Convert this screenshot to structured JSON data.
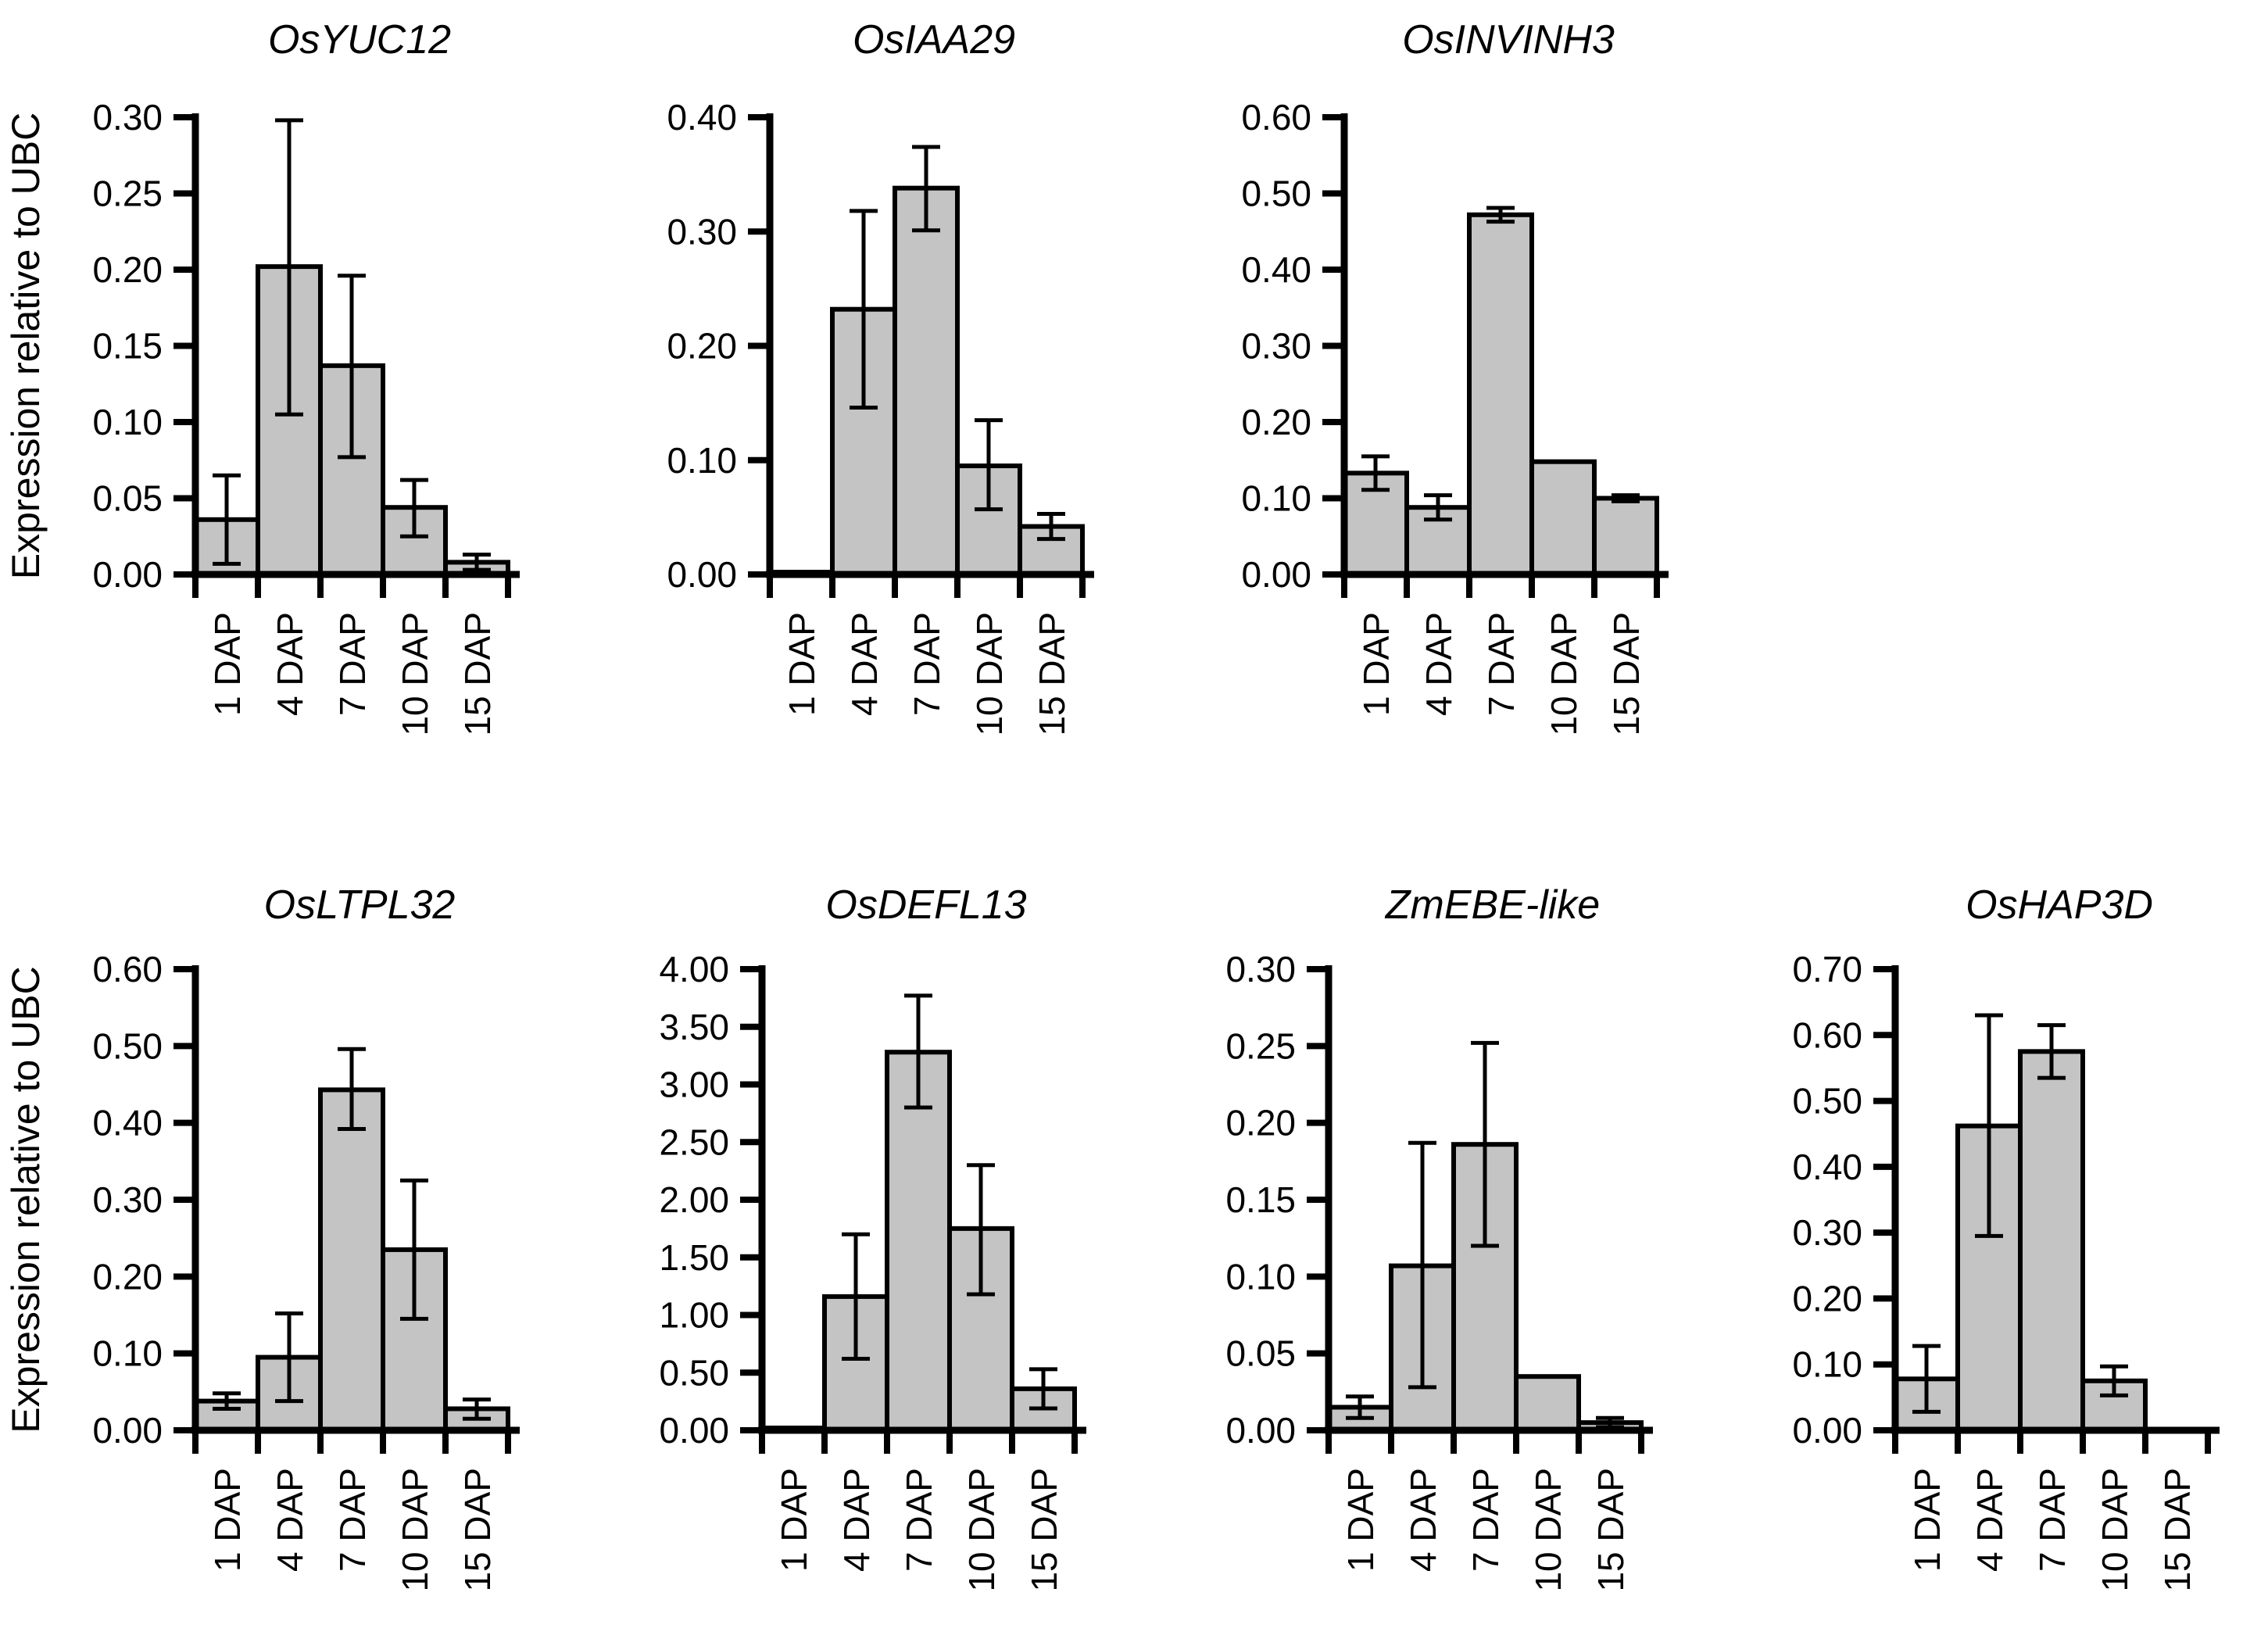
{
  "figure": {
    "y_axis_label": "Expression relative to UBC",
    "categories": [
      "1 DAP",
      "4 DAP",
      "7 DAP",
      "10 DAP",
      "15 DAP"
    ],
    "styles": {
      "bar_fill": "#c4c4c4",
      "bar_stroke": "#000000",
      "axis_color": "#000000",
      "text_color": "#000000",
      "background": "#ffffff"
    }
  },
  "chart_data": [
    {
      "type": "bar",
      "row": 1,
      "title": "OsYUC12",
      "ylabel": "Expression relative to UBC",
      "categories": [
        "1 DAP",
        "4 DAP",
        "7 DAP",
        "10 DAP",
        "15 DAP"
      ],
      "values": [
        0.036,
        0.202,
        0.137,
        0.044,
        0.008
      ],
      "err_plus": [
        0.029,
        0.096,
        0.059,
        0.018,
        0.005
      ],
      "err_minus": [
        0.029,
        0.097,
        0.06,
        0.019,
        0.005
      ],
      "ylim": [
        0,
        0.3
      ],
      "ystep": 0.05,
      "yticks": [
        "0.00",
        "0.05",
        "0.10",
        "0.15",
        "0.20",
        "0.25",
        "0.30"
      ],
      "grid": false,
      "legend": null
    },
    {
      "type": "bar",
      "row": 1,
      "title": "OsIAA29",
      "ylabel": "Expression relative to UBC",
      "categories": [
        "1 DAP",
        "4 DAP",
        "7 DAP",
        "10 DAP",
        "15 DAP"
      ],
      "values": [
        0.002,
        0.232,
        0.338,
        0.095,
        0.042
      ],
      "err_plus": [
        0,
        0.086,
        0.036,
        0.04,
        0.011
      ],
      "err_minus": [
        0,
        0.086,
        0.037,
        0.038,
        0.011
      ],
      "ylim": [
        0,
        0.4
      ],
      "ystep": 0.1,
      "yticks": [
        "0.00",
        "0.10",
        "0.20",
        "0.30",
        "0.40"
      ],
      "grid": false,
      "legend": null
    },
    {
      "type": "bar",
      "row": 1,
      "title": "OsINVINH3",
      "ylabel": "Expression relative to UBC",
      "categories": [
        "1 DAP",
        "4 DAP",
        "7 DAP",
        "10 DAP",
        "15 DAP"
      ],
      "values": [
        0.133,
        0.088,
        0.472,
        0.148,
        0.1
      ],
      "err_plus": [
        0.022,
        0.016,
        0.009,
        0,
        0.004
      ],
      "err_minus": [
        0.022,
        0.016,
        0.009,
        0,
        0.004
      ],
      "ylim": [
        0,
        0.6
      ],
      "ystep": 0.1,
      "yticks": [
        "0.00",
        "0.10",
        "0.20",
        "0.30",
        "0.40",
        "0.50",
        "0.60"
      ],
      "grid": false,
      "legend": null
    },
    {
      "type": "bar",
      "row": 2,
      "title": "OsLTPL32",
      "ylabel": "Expression relative to UBC",
      "categories": [
        "1 DAP",
        "4 DAP",
        "7 DAP",
        "10 DAP",
        "15 DAP"
      ],
      "values": [
        0.038,
        0.095,
        0.443,
        0.235,
        0.028
      ],
      "err_plus": [
        0.01,
        0.057,
        0.053,
        0.09,
        0.012
      ],
      "err_minus": [
        0.01,
        0.057,
        0.051,
        0.09,
        0.013
      ],
      "ylim": [
        0,
        0.6
      ],
      "ystep": 0.1,
      "yticks": [
        "0.00",
        "0.10",
        "0.20",
        "0.30",
        "0.40",
        "0.50",
        "0.60"
      ],
      "grid": false,
      "legend": null
    },
    {
      "type": "bar",
      "row": 2,
      "title": "OsDEFL13",
      "ylabel": "Expression relative to UBC",
      "categories": [
        "1 DAP",
        "4 DAP",
        "7 DAP",
        "10 DAP",
        "15 DAP"
      ],
      "values": [
        0.02,
        1.16,
        3.28,
        1.75,
        0.36
      ],
      "err_plus": [
        0,
        0.54,
        0.49,
        0.55,
        0.17
      ],
      "err_minus": [
        0,
        0.54,
        0.48,
        0.57,
        0.17
      ],
      "ylim": [
        0,
        4.0
      ],
      "ystep": 0.5,
      "yticks": [
        "0.00",
        "0.50",
        "1.00",
        "1.50",
        "2.00",
        "2.50",
        "3.00",
        "3.50",
        "4.00"
      ],
      "grid": false,
      "legend": null
    },
    {
      "type": "bar",
      "row": 2,
      "title": "ZmEBE-like",
      "ylabel": "Expression relative to UBC",
      "categories": [
        "1 DAP",
        "4 DAP",
        "7 DAP",
        "10 DAP",
        "15 DAP"
      ],
      "values": [
        0.015,
        0.107,
        0.186,
        0.035,
        0.005
      ],
      "err_plus": [
        0.007,
        0.08,
        0.066,
        0,
        0.003
      ],
      "err_minus": [
        0.007,
        0.079,
        0.066,
        0,
        0.003
      ],
      "ylim": [
        0,
        0.3
      ],
      "ystep": 0.05,
      "yticks": [
        "0.00",
        "0.05",
        "0.10",
        "0.15",
        "0.20",
        "0.25",
        "0.30"
      ],
      "grid": false,
      "legend": null
    },
    {
      "type": "bar",
      "row": 2,
      "title": "OsHAP3D",
      "ylabel": "Expression relative to UBC",
      "categories": [
        "1 DAP",
        "4 DAP",
        "7 DAP",
        "10 DAP",
        "15 DAP"
      ],
      "values": [
        0.078,
        0.462,
        0.575,
        0.075,
        0
      ],
      "err_plus": [
        0.05,
        0.168,
        0.04,
        0.022,
        0
      ],
      "err_minus": [
        0.05,
        0.167,
        0.04,
        0.022,
        0
      ],
      "ylim": [
        0,
        0.7
      ],
      "ystep": 0.1,
      "yticks": [
        "0.00",
        "0.10",
        "0.20",
        "0.30",
        "0.40",
        "0.50",
        "0.60",
        "0.70"
      ],
      "grid": false,
      "legend": null
    }
  ]
}
